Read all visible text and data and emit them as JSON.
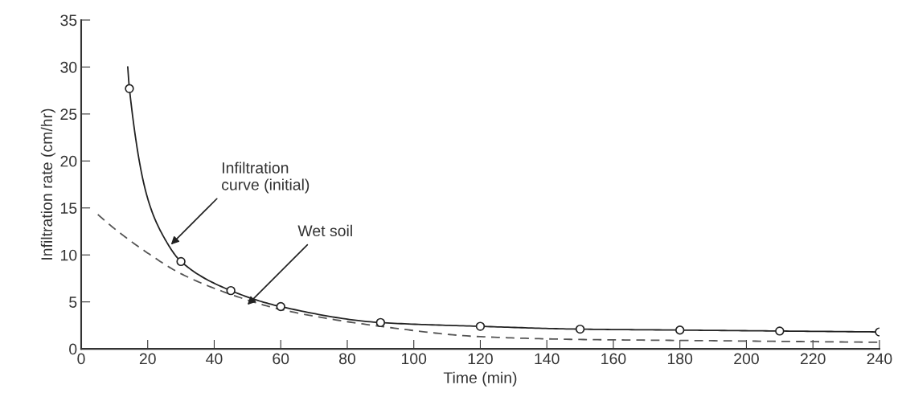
{
  "chart_data": {
    "type": "line",
    "xlabel": "Time (min)",
    "ylabel": "Infiltration rate (cm/hr)",
    "xlim": [
      0,
      240
    ],
    "xticks": [
      0,
      20,
      40,
      60,
      80,
      100,
      120,
      140,
      160,
      180,
      200,
      220,
      240
    ],
    "ylim": [
      0,
      35
    ],
    "yticks": [
      0,
      5,
      10,
      15,
      20,
      25,
      30,
      35
    ],
    "grid": false,
    "legend": false,
    "series": [
      {
        "color": "#222222",
        "line_style": "solid",
        "marker": "none",
        "x": [
          14,
          14.5,
          20,
          25,
          30,
          45,
          60,
          90,
          120,
          150,
          180,
          210,
          240
        ],
        "values": [
          30,
          27.7,
          16,
          11.8,
          9.3,
          6.2,
          4.5,
          2.8,
          2.4,
          2.1,
          2.0,
          1.9,
          1.8
        ]
      },
      {
        "type": "scatter",
        "color": "#222222",
        "marker": "circle",
        "x": [
          14.5,
          30,
          45,
          60,
          90,
          120,
          150,
          180,
          210,
          240
        ],
        "values": [
          27.7,
          9.3,
          6.2,
          4.5,
          2.8,
          2.4,
          2.1,
          2.0,
          1.9,
          1.8
        ]
      },
      {
        "color": "#555555",
        "line_style": "dashed",
        "marker": "none",
        "x": [
          5,
          10,
          20,
          30,
          45,
          60,
          90,
          120,
          150,
          180,
          210,
          240
        ],
        "values": [
          14.3,
          12.8,
          10.2,
          8.0,
          5.8,
          4.2,
          2.4,
          1.3,
          1.0,
          0.9,
          0.8,
          0.7
        ]
      }
    ],
    "annotations": [
      {
        "text": "Infiltration\ncurve (initial)",
        "x": 27,
        "y": 11.1
      },
      {
        "text": "Wet soil",
        "x": 50,
        "y": 4.7
      }
    ]
  }
}
